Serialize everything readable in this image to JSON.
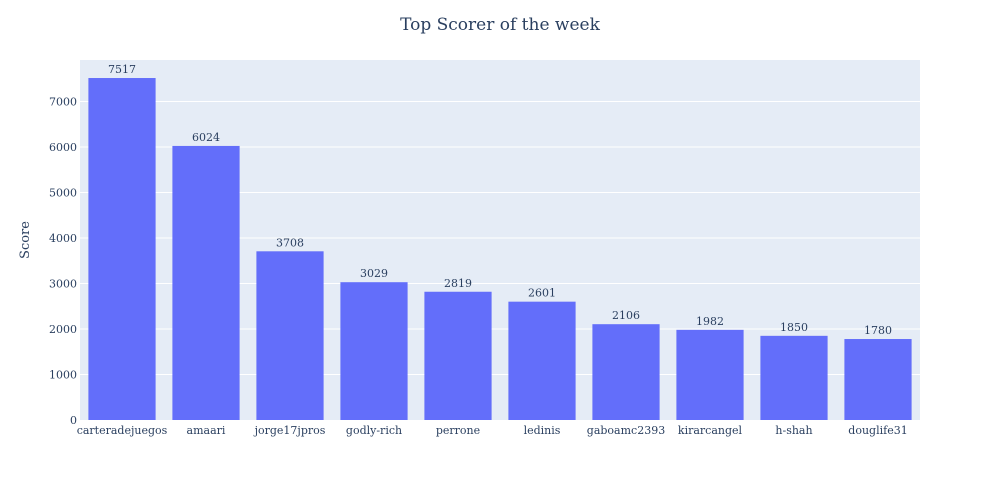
{
  "chart_data": {
    "type": "bar",
    "title": "Top Scorer of the week",
    "xlabel": "",
    "ylabel": "Score",
    "categories": [
      "carteradejuegos",
      "amaari",
      "jorge17jpros",
      "godly-rich",
      "perrone",
      "ledinis",
      "gaboamc2393",
      "kirarcangel",
      "h-shah",
      "douglife31"
    ],
    "values": [
      7517,
      6024,
      3708,
      3029,
      2819,
      2601,
      2106,
      1982,
      1850,
      1780
    ],
    "data_labels": [
      "7517",
      "6024",
      "3708",
      "3029",
      "2819",
      "2601",
      "2106",
      "1982",
      "1850",
      "1780"
    ],
    "ylim": [
      0,
      7913
    ],
    "yticks": [
      0,
      1000,
      2000,
      3000,
      4000,
      5000,
      6000,
      7000
    ],
    "grid": true,
    "colors": {
      "bar": "#636efa",
      "plot_bg": "#e5ecf6",
      "grid": "#ffffff",
      "text": "#2a3f5f"
    }
  }
}
